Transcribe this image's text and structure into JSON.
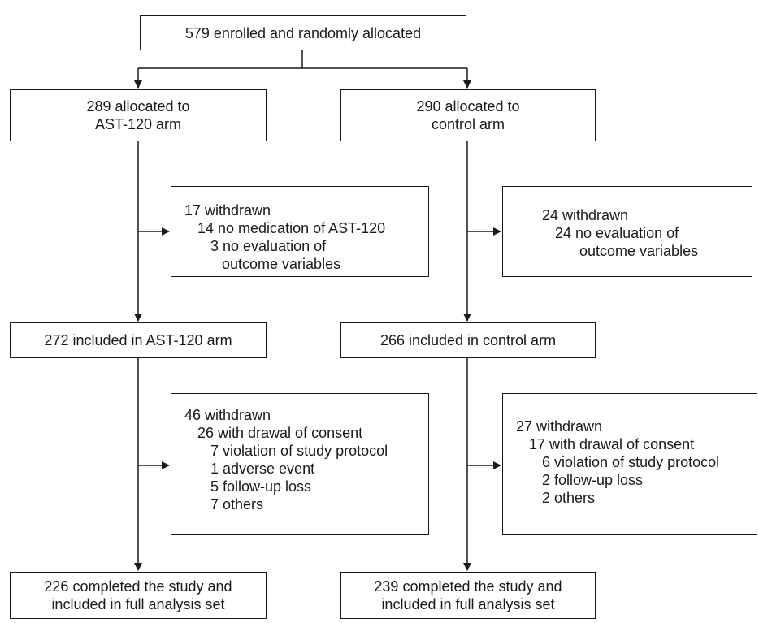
{
  "enrolled": "579 enrolled and randomly allocated",
  "left": {
    "allocated": [
      "289 allocated to",
      "AST-120 arm"
    ],
    "withdrawn1": [
      {
        "text": "17 withdrawn",
        "level": 0
      },
      {
        "text": "14 no medication of AST-120",
        "level": 1
      },
      {
        "text": "3 no evaluation of",
        "level": 2
      },
      {
        "text": "outcome variables",
        "level": 3
      }
    ],
    "included": "272 included in AST-120 arm",
    "withdrawn2": [
      {
        "text": "46 withdrawn",
        "level": 0
      },
      {
        "text": "26 with drawal of consent",
        "level": 1
      },
      {
        "text": "7 violation of study protocol",
        "level": 2
      },
      {
        "text": "1 adverse event",
        "level": 2
      },
      {
        "text": "5 follow-up loss",
        "level": 2
      },
      {
        "text": "7 others",
        "level": 2
      }
    ],
    "completed": [
      "226 completed the study and",
      "included in full analysis set"
    ]
  },
  "right": {
    "allocated": [
      "290 allocated to",
      "control arm"
    ],
    "withdrawn1": [
      {
        "text": "24 withdrawn",
        "level": 0
      },
      {
        "text": "24 no evaluation of",
        "level": 1
      },
      {
        "text": "outcome variables",
        "level": 3
      }
    ],
    "included": "266 included in control arm",
    "withdrawn2": [
      {
        "text": "27 withdrawn",
        "level": 0
      },
      {
        "text": "17 with drawal of consent",
        "level": 1
      },
      {
        "text": "6 violation of study protocol",
        "level": 2
      },
      {
        "text": "2 follow-up loss",
        "level": 2
      },
      {
        "text": "2 others",
        "level": 2
      }
    ],
    "completed": [
      "239 completed the study and",
      "included in full analysis set"
    ]
  }
}
